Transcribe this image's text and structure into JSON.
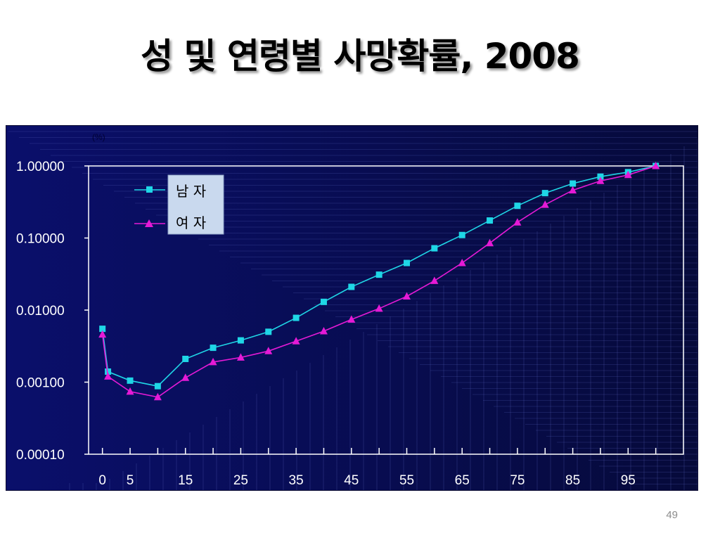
{
  "slide": {
    "title": "성 및 연령별 사망확률, 2008",
    "page_number": "49"
  },
  "colors": {
    "background_left": "#0a0f6b",
    "background_right": "#060a3a",
    "male": "#1fd6e6",
    "female": "#e51ad6",
    "legend_bg": "#c9d9ee",
    "axis": "#ffffff"
  },
  "chart_data": {
    "type": "line",
    "title": "",
    "xlabel": "",
    "ylabel": "",
    "unit_label": "(%)",
    "y_scale": "log",
    "ylim": [
      0.0001,
      1
    ],
    "xlim": [
      -2.5,
      105
    ],
    "y_ticks": [
      {
        "value": 1,
        "label": "1.00000"
      },
      {
        "value": 0.1,
        "label": "0.10000"
      },
      {
        "value": 0.01,
        "label": "0.01000"
      },
      {
        "value": 0.001,
        "label": "0.00100"
      },
      {
        "value": 0.0001,
        "label": "0.00010"
      }
    ],
    "x_ticks": [
      0,
      5,
      15,
      25,
      35,
      45,
      55,
      65,
      75,
      85,
      95
    ],
    "x_tick_labels": [
      "0",
      "5",
      "15",
      "25",
      "35",
      "45",
      "55",
      "65",
      "75",
      "85",
      "95"
    ],
    "legend_position": "top-left",
    "grid": false,
    "x": [
      0,
      1,
      5,
      10,
      15,
      20,
      25,
      30,
      35,
      40,
      45,
      50,
      55,
      60,
      65,
      70,
      75,
      80,
      85,
      90,
      95,
      100
    ],
    "series": [
      {
        "name": "남 자",
        "marker": "square",
        "color": "#1fd6e6",
        "values": [
          0.0055,
          0.0014,
          0.00105,
          0.00088,
          0.0021,
          0.003,
          0.0038,
          0.005,
          0.0078,
          0.013,
          0.021,
          0.031,
          0.045,
          0.072,
          0.11,
          0.175,
          0.28,
          0.42,
          0.57,
          0.71,
          0.82,
          1.0
        ]
      },
      {
        "name": "여 자",
        "marker": "triangle",
        "color": "#e51ad6",
        "values": [
          0.0046,
          0.0012,
          0.00074,
          0.00062,
          0.00115,
          0.0019,
          0.0022,
          0.0027,
          0.0037,
          0.0051,
          0.0074,
          0.0105,
          0.0155,
          0.0255,
          0.045,
          0.085,
          0.165,
          0.29,
          0.46,
          0.62,
          0.75,
          1.0
        ]
      }
    ]
  }
}
